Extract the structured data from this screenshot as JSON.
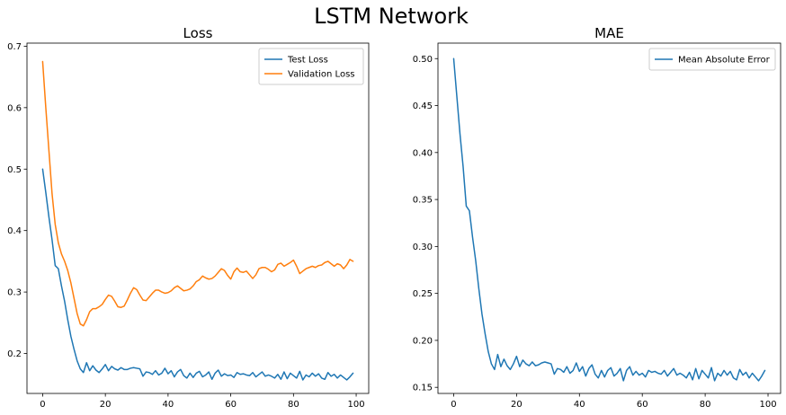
{
  "figure": {
    "title": "LSTM Network"
  },
  "colors": {
    "blue": "#1f77b4",
    "orange": "#ff7f0e"
  },
  "chart_data": [
    {
      "type": "line",
      "title": "Loss",
      "xlabel": "",
      "ylabel": "",
      "xlim": [
        -5,
        104
      ],
      "ylim": [
        0.135,
        0.705
      ],
      "xticks": [
        0,
        20,
        40,
        60,
        80,
        100
      ],
      "yticks": [
        0.2,
        0.3,
        0.4,
        0.5,
        0.6,
        0.7
      ],
      "ytick_decimals": 1,
      "legend": "top-right",
      "grid": false,
      "series": [
        {
          "name": "Test Loss",
          "color": "#1f77b4",
          "x": [
            0,
            1,
            2,
            3,
            4,
            5,
            6,
            7,
            8,
            9,
            10,
            11,
            12,
            13,
            14,
            15,
            16,
            17,
            18,
            19,
            20,
            21,
            22,
            23,
            24,
            25,
            26,
            27,
            28,
            29,
            30,
            31,
            32,
            33,
            34,
            35,
            36,
            37,
            38,
            39,
            40,
            41,
            42,
            43,
            44,
            45,
            46,
            47,
            48,
            49,
            50,
            51,
            52,
            53,
            54,
            55,
            56,
            57,
            58,
            59,
            60,
            61,
            62,
            63,
            64,
            65,
            66,
            67,
            68,
            69,
            70,
            71,
            72,
            73,
            74,
            75,
            76,
            77,
            78,
            79,
            80,
            81,
            82,
            83,
            84,
            85,
            86,
            87,
            88,
            89,
            90,
            91,
            92,
            93,
            94,
            95,
            96,
            97,
            98,
            99
          ],
          "values": [
            0.5,
            0.462,
            0.422,
            0.385,
            0.343,
            0.338,
            0.31,
            0.285,
            0.255,
            0.228,
            0.207,
            0.188,
            0.175,
            0.169,
            0.185,
            0.172,
            0.18,
            0.173,
            0.169,
            0.175,
            0.182,
            0.172,
            0.179,
            0.175,
            0.173,
            0.177,
            0.174,
            0.174,
            0.176,
            0.177,
            0.176,
            0.175,
            0.163,
            0.17,
            0.169,
            0.166,
            0.172,
            0.165,
            0.168,
            0.176,
            0.167,
            0.172,
            0.162,
            0.17,
            0.174,
            0.164,
            0.16,
            0.168,
            0.161,
            0.168,
            0.171,
            0.162,
            0.165,
            0.17,
            0.158,
            0.168,
            0.173,
            0.163,
            0.167,
            0.164,
            0.165,
            0.161,
            0.169,
            0.166,
            0.167,
            0.165,
            0.164,
            0.169,
            0.162,
            0.166,
            0.17,
            0.163,
            0.165,
            0.163,
            0.16,
            0.166,
            0.158,
            0.17,
            0.159,
            0.168,
            0.164,
            0.16,
            0.171,
            0.157,
            0.165,
            0.162,
            0.168,
            0.163,
            0.167,
            0.16,
            0.158,
            0.169,
            0.163,
            0.166,
            0.16,
            0.165,
            0.161,
            0.157,
            0.162,
            0.168
          ]
        },
        {
          "name": "Validation Loss",
          "color": "#ff7f0e",
          "x": [
            0,
            1,
            2,
            3,
            4,
            5,
            6,
            7,
            8,
            9,
            10,
            11,
            12,
            13,
            14,
            15,
            16,
            17,
            18,
            19,
            20,
            21,
            22,
            23,
            24,
            25,
            26,
            27,
            28,
            29,
            30,
            31,
            32,
            33,
            34,
            35,
            36,
            37,
            38,
            39,
            40,
            41,
            42,
            43,
            44,
            45,
            46,
            47,
            48,
            49,
            50,
            51,
            52,
            53,
            54,
            55,
            56,
            57,
            58,
            59,
            60,
            61,
            62,
            63,
            64,
            65,
            66,
            67,
            68,
            69,
            70,
            71,
            72,
            73,
            74,
            75,
            76,
            77,
            78,
            79,
            80,
            81,
            82,
            83,
            84,
            85,
            86,
            87,
            88,
            89,
            90,
            91,
            92,
            93,
            94,
            95,
            96,
            97,
            98,
            99
          ],
          "values": [
            0.675,
            0.6,
            0.53,
            0.46,
            0.41,
            0.38,
            0.362,
            0.35,
            0.335,
            0.315,
            0.29,
            0.265,
            0.248,
            0.245,
            0.255,
            0.268,
            0.273,
            0.273,
            0.276,
            0.28,
            0.288,
            0.295,
            0.293,
            0.285,
            0.276,
            0.275,
            0.277,
            0.287,
            0.298,
            0.307,
            0.304,
            0.295,
            0.287,
            0.286,
            0.292,
            0.298,
            0.303,
            0.303,
            0.3,
            0.298,
            0.299,
            0.302,
            0.307,
            0.31,
            0.306,
            0.302,
            0.303,
            0.305,
            0.31,
            0.317,
            0.32,
            0.326,
            0.323,
            0.321,
            0.322,
            0.326,
            0.332,
            0.338,
            0.335,
            0.327,
            0.321,
            0.333,
            0.339,
            0.333,
            0.332,
            0.334,
            0.328,
            0.322,
            0.328,
            0.338,
            0.34,
            0.34,
            0.337,
            0.333,
            0.336,
            0.345,
            0.347,
            0.342,
            0.345,
            0.348,
            0.352,
            0.342,
            0.33,
            0.334,
            0.338,
            0.34,
            0.342,
            0.34,
            0.343,
            0.344,
            0.348,
            0.35,
            0.346,
            0.342,
            0.346,
            0.344,
            0.338,
            0.344,
            0.353,
            0.35
          ]
        }
      ]
    },
    {
      "type": "line",
      "title": "MAE",
      "xlabel": "",
      "ylabel": "",
      "xlim": [
        -5,
        104
      ],
      "ylim": [
        0.1435,
        0.5165
      ],
      "xticks": [
        0,
        20,
        40,
        60,
        80,
        100
      ],
      "yticks": [
        0.15,
        0.2,
        0.25,
        0.3,
        0.35,
        0.4,
        0.45,
        0.5
      ],
      "ytick_decimals": 2,
      "legend": "top-right",
      "grid": false,
      "series": [
        {
          "name": "Mean Absolute Error",
          "color": "#1f77b4",
          "x": [
            0,
            1,
            2,
            3,
            4,
            5,
            6,
            7,
            8,
            9,
            10,
            11,
            12,
            13,
            14,
            15,
            16,
            17,
            18,
            19,
            20,
            21,
            22,
            23,
            24,
            25,
            26,
            27,
            28,
            29,
            30,
            31,
            32,
            33,
            34,
            35,
            36,
            37,
            38,
            39,
            40,
            41,
            42,
            43,
            44,
            45,
            46,
            47,
            48,
            49,
            50,
            51,
            52,
            53,
            54,
            55,
            56,
            57,
            58,
            59,
            60,
            61,
            62,
            63,
            64,
            65,
            66,
            67,
            68,
            69,
            70,
            71,
            72,
            73,
            74,
            75,
            76,
            77,
            78,
            79,
            80,
            81,
            82,
            83,
            84,
            85,
            86,
            87,
            88,
            89,
            90,
            91,
            92,
            93,
            94,
            95,
            96,
            97,
            98,
            99
          ],
          "values": [
            0.5,
            0.46,
            0.42,
            0.385,
            0.343,
            0.338,
            0.31,
            0.285,
            0.255,
            0.228,
            0.207,
            0.188,
            0.175,
            0.169,
            0.185,
            0.172,
            0.18,
            0.173,
            0.169,
            0.175,
            0.183,
            0.172,
            0.179,
            0.175,
            0.173,
            0.177,
            0.173,
            0.174,
            0.176,
            0.177,
            0.176,
            0.175,
            0.164,
            0.17,
            0.169,
            0.166,
            0.172,
            0.165,
            0.168,
            0.176,
            0.167,
            0.172,
            0.162,
            0.17,
            0.174,
            0.164,
            0.16,
            0.168,
            0.161,
            0.168,
            0.171,
            0.162,
            0.165,
            0.17,
            0.157,
            0.168,
            0.172,
            0.163,
            0.167,
            0.163,
            0.165,
            0.161,
            0.168,
            0.166,
            0.167,
            0.165,
            0.164,
            0.168,
            0.162,
            0.166,
            0.17,
            0.163,
            0.165,
            0.163,
            0.16,
            0.166,
            0.158,
            0.17,
            0.159,
            0.168,
            0.164,
            0.16,
            0.171,
            0.157,
            0.165,
            0.162,
            0.168,
            0.163,
            0.167,
            0.16,
            0.158,
            0.169,
            0.163,
            0.166,
            0.16,
            0.165,
            0.161,
            0.157,
            0.162,
            0.168
          ]
        }
      ]
    }
  ]
}
